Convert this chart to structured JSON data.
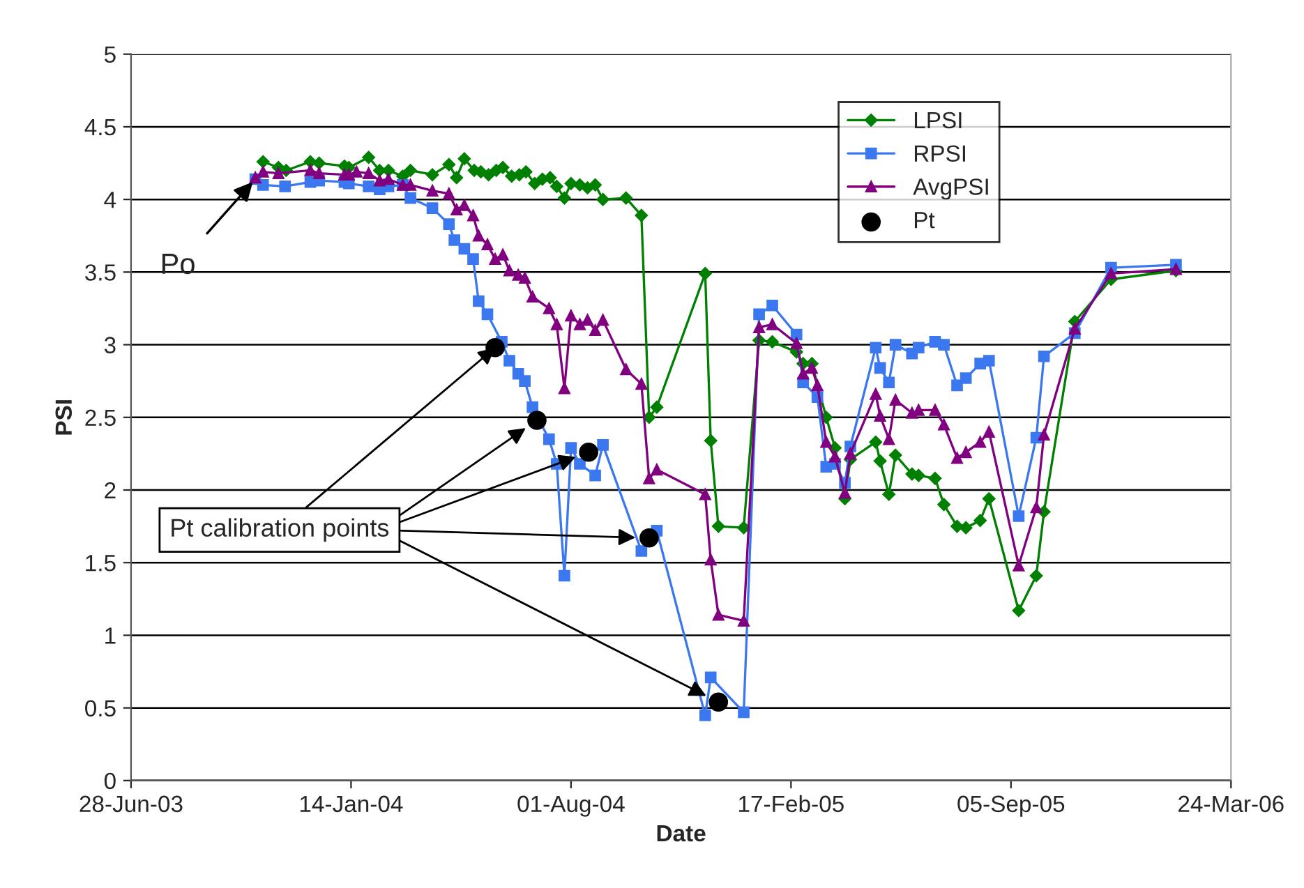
{
  "chart_data": {
    "type": "line",
    "xlabel": "Date",
    "ylabel": "PSI",
    "xlim": [
      "2003-06-28",
      "2006-03-24"
    ],
    "xticks": [
      {
        "value": "2003-06-28",
        "label": "28-Jun-03"
      },
      {
        "value": "2004-01-14",
        "label": "14-Jan-04"
      },
      {
        "value": "2004-08-01",
        "label": "01-Aug-04"
      },
      {
        "value": "2005-02-17",
        "label": "17-Feb-05"
      },
      {
        "value": "2005-09-05",
        "label": "05-Sep-05"
      },
      {
        "value": "2006-03-24",
        "label": "24-Mar-06"
      }
    ],
    "ylim": [
      0,
      5
    ],
    "yticks": [
      0,
      0.5,
      1,
      1.5,
      2,
      2.5,
      3,
      3.5,
      4,
      4.5,
      5
    ],
    "grid": "y",
    "legend": "top right",
    "series": [
      {
        "name": "LPSI",
        "color": "#008000",
        "marker": "diamond",
        "x": [
          "2003-10-26",
          "2003-11-09",
          "2003-11-16",
          "2003-12-08",
          "2003-12-16",
          "2004-01-08",
          "2004-01-12",
          "2004-01-30",
          "2004-02-09",
          "2004-02-17",
          "2004-03-01",
          "2004-03-08",
          "2004-03-28",
          "2004-04-12",
          "2004-04-19",
          "2004-04-26",
          "2004-05-05",
          "2004-05-11",
          "2004-05-18",
          "2004-05-25",
          "2004-05-31",
          "2004-06-08",
          "2004-06-15",
          "2004-06-21",
          "2004-06-29",
          "2004-07-06",
          "2004-07-13",
          "2004-07-19",
          "2004-07-26",
          "2004-08-01",
          "2004-08-09",
          "2004-08-16",
          "2004-08-23",
          "2004-08-30",
          "2004-09-20",
          "2004-10-04",
          "2004-10-11",
          "2004-10-18",
          "2004-12-01",
          "2004-12-06",
          "2004-12-13",
          "2005-01-05",
          "2005-01-19",
          "2005-01-31",
          "2005-02-22",
          "2005-02-28",
          "2005-03-08",
          "2005-03-21",
          "2005-03-29",
          "2005-04-07",
          "2005-04-12",
          "2005-05-05",
          "2005-05-09",
          "2005-05-17",
          "2005-05-23",
          "2005-06-07",
          "2005-06-13",
          "2005-06-28",
          "2005-07-06",
          "2005-07-18",
          "2005-07-26",
          "2005-08-08",
          "2005-08-16",
          "2005-09-12",
          "2005-09-28",
          "2005-10-05",
          "2005-11-02",
          "2005-12-05",
          "2006-02-02"
        ],
        "values": [
          4.26,
          4.22,
          4.2,
          4.26,
          4.25,
          4.23,
          4.22,
          4.29,
          4.2,
          4.2,
          4.16,
          4.2,
          4.17,
          4.24,
          4.15,
          4.28,
          4.2,
          4.19,
          4.17,
          4.2,
          4.22,
          4.16,
          4.17,
          4.19,
          4.11,
          4.14,
          4.15,
          4.09,
          4.01,
          4.11,
          4.1,
          4.08,
          4.1,
          4.0,
          4.01,
          3.89,
          2.5,
          2.57,
          3.49,
          2.34,
          1.75,
          1.74,
          3.03,
          3.02,
          2.95,
          2.87,
          2.87,
          2.5,
          2.29,
          1.94,
          2.21,
          2.33,
          2.2,
          1.97,
          2.24,
          2.11,
          2.1,
          2.08,
          1.9,
          1.75,
          1.74,
          1.79,
          1.94,
          1.17,
          1.41,
          1.85,
          3.16,
          3.45,
          3.51
        ]
      },
      {
        "name": "RPSI",
        "color": "#3b78f0",
        "marker": "square",
        "x": [
          "2003-10-19",
          "2003-10-26",
          "2003-11-15",
          "2003-12-08",
          "2003-12-16",
          "2004-01-08",
          "2004-01-12",
          "2004-01-30",
          "2004-02-09",
          "2004-02-17",
          "2004-03-01",
          "2004-03-08",
          "2004-03-28",
          "2004-04-12",
          "2004-04-17",
          "2004-04-26",
          "2004-05-04",
          "2004-05-09",
          "2004-05-17",
          "2004-05-30",
          "2004-06-06",
          "2004-06-14",
          "2004-06-20",
          "2004-06-27",
          "2004-07-12",
          "2004-07-19",
          "2004-07-26",
          "2004-08-01",
          "2004-08-09",
          "2004-08-23",
          "2004-08-30",
          "2004-10-04",
          "2004-10-18",
          "2004-12-01",
          "2004-12-06",
          "2005-01-05",
          "2005-01-19",
          "2005-01-31",
          "2005-02-22",
          "2005-02-28",
          "2005-03-13",
          "2005-03-21",
          "2005-03-29",
          "2005-04-07",
          "2005-04-12",
          "2005-05-05",
          "2005-05-09",
          "2005-05-17",
          "2005-05-23",
          "2005-06-07",
          "2005-06-13",
          "2005-06-28",
          "2005-07-06",
          "2005-07-18",
          "2005-07-26",
          "2005-08-08",
          "2005-08-16",
          "2005-09-12",
          "2005-09-28",
          "2005-10-05",
          "2005-11-02",
          "2005-12-05",
          "2006-02-02"
        ],
        "values": [
          4.14,
          4.1,
          4.09,
          4.12,
          4.13,
          4.12,
          4.11,
          4.09,
          4.07,
          4.09,
          4.1,
          4.01,
          3.94,
          3.83,
          3.72,
          3.66,
          3.59,
          3.3,
          3.21,
          3.02,
          2.89,
          2.8,
          2.75,
          2.57,
          2.35,
          2.18,
          1.41,
          2.29,
          2.18,
          2.1,
          2.31,
          1.58,
          1.72,
          0.45,
          0.71,
          0.47,
          3.21,
          3.27,
          3.07,
          2.74,
          2.64,
          2.16,
          2.18,
          2.05,
          2.3,
          2.98,
          2.84,
          2.74,
          3.0,
          2.94,
          2.98,
          3.02,
          3.0,
          2.72,
          2.77,
          2.87,
          2.89,
          1.82,
          2.36,
          2.92,
          3.08,
          3.53,
          3.55
        ]
      },
      {
        "name": "AvgPSI",
        "color": "#800080",
        "marker": "triangle",
        "x": [
          "2003-10-19",
          "2003-10-26",
          "2003-11-09",
          "2003-12-08",
          "2003-12-16",
          "2004-01-08",
          "2004-01-12",
          "2004-01-19",
          "2004-01-30",
          "2004-02-09",
          "2004-02-17",
          "2004-03-01",
          "2004-03-08",
          "2004-03-28",
          "2004-04-12",
          "2004-04-19",
          "2004-04-26",
          "2004-05-04",
          "2004-05-09",
          "2004-05-17",
          "2004-05-24",
          "2004-05-31",
          "2004-06-06",
          "2004-06-14",
          "2004-06-20",
          "2004-06-27",
          "2004-07-12",
          "2004-07-19",
          "2004-07-26",
          "2004-08-01",
          "2004-08-09",
          "2004-08-16",
          "2004-08-23",
          "2004-08-30",
          "2004-09-20",
          "2004-10-04",
          "2004-10-11",
          "2004-10-18",
          "2004-12-01",
          "2004-12-06",
          "2004-12-13",
          "2005-01-05",
          "2005-01-19",
          "2005-01-31",
          "2005-02-22",
          "2005-02-28",
          "2005-03-08",
          "2005-03-13",
          "2005-03-21",
          "2005-03-29",
          "2005-04-07",
          "2005-04-12",
          "2005-05-05",
          "2005-05-09",
          "2005-05-17",
          "2005-05-23",
          "2005-06-07",
          "2005-06-13",
          "2005-06-28",
          "2005-07-06",
          "2005-07-18",
          "2005-07-26",
          "2005-08-08",
          "2005-08-16",
          "2005-09-12",
          "2005-09-28",
          "2005-10-05",
          "2005-11-02",
          "2005-12-05",
          "2006-02-02"
        ],
        "values": [
          4.15,
          4.19,
          4.18,
          4.2,
          4.18,
          4.17,
          4.17,
          4.19,
          4.18,
          4.13,
          4.14,
          4.1,
          4.1,
          4.06,
          4.04,
          3.93,
          3.96,
          3.89,
          3.75,
          3.69,
          3.59,
          3.62,
          3.51,
          3.48,
          3.46,
          3.33,
          3.25,
          3.14,
          2.7,
          3.2,
          3.14,
          3.17,
          3.1,
          3.17,
          2.83,
          2.73,
          2.08,
          2.14,
          1.97,
          1.52,
          1.14,
          1.1,
          3.12,
          3.14,
          3.01,
          2.8,
          2.84,
          2.72,
          2.33,
          2.23,
          1.98,
          2.25,
          2.66,
          2.51,
          2.35,
          2.62,
          2.53,
          2.55,
          2.55,
          2.45,
          2.22,
          2.26,
          2.33,
          2.4,
          1.48,
          1.88,
          2.38,
          3.11,
          3.49,
          3.52
        ]
      },
      {
        "name": "Pt",
        "type": "scatter",
        "color": "#000000",
        "marker": "circle",
        "x": [
          "2004-05-24",
          "2004-07-01",
          "2004-08-17",
          "2004-10-11",
          "2004-12-13"
        ],
        "values": [
          2.98,
          2.48,
          2.26,
          1.67,
          0.54
        ]
      }
    ],
    "annotations": [
      {
        "text": "Po",
        "x": "2003-10-19",
        "y": 4.14
      },
      {
        "text": "Pt calibration points",
        "x": "2004-05-24",
        "y": 2.98
      }
    ]
  }
}
